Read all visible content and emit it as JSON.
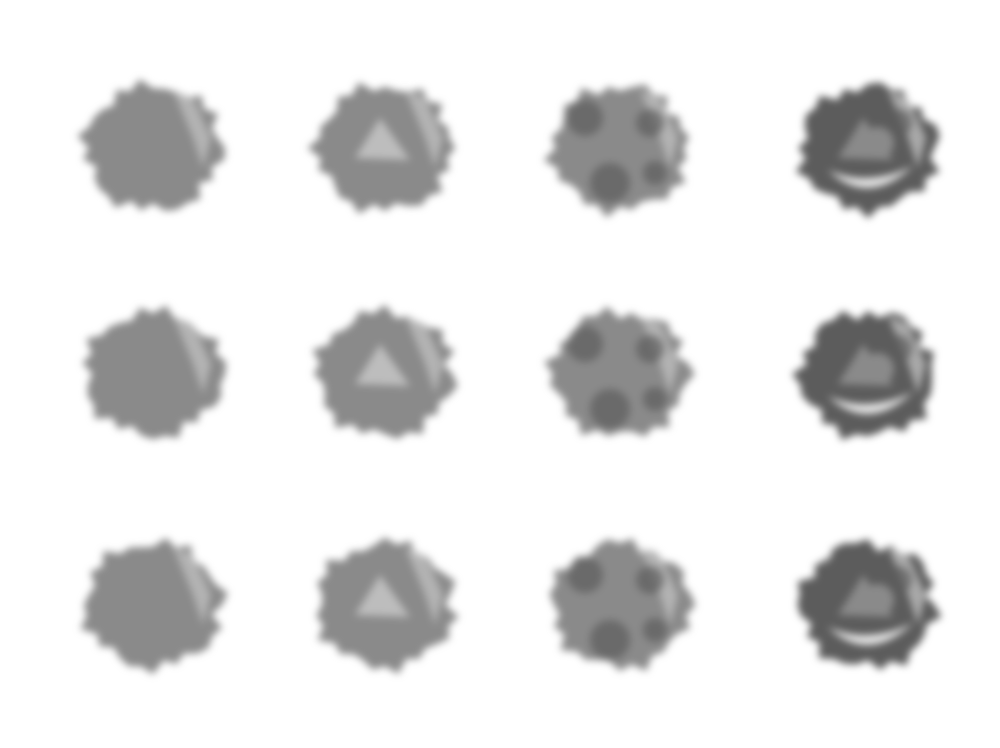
{
  "image": {
    "description_kind": "grid-of-blurred-grayscale-blobs",
    "rows": 3,
    "columns": 4,
    "background": "#ffffff",
    "palette": {
      "blob_base": "#8a8a8a",
      "blob_dark": "#5c5c5c",
      "blob_light": "#bdbdbd",
      "blob_highlight": "#e6e6e6"
    },
    "column_detail_levels": [
      0,
      1,
      2,
      3
    ]
  }
}
